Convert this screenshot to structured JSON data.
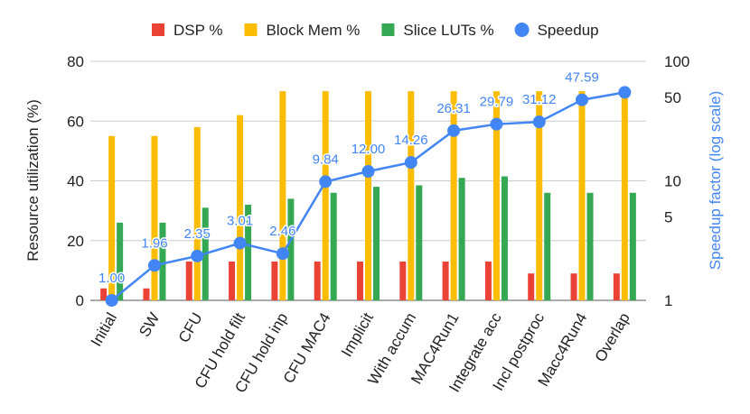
{
  "chart_data": {
    "type": "bar",
    "categories": [
      "Initial",
      "SW",
      "CFU",
      "CFU hold filt",
      "CFU hold inp",
      "CFU MAC4",
      "Implicit",
      "With accum",
      "MAC4Run1",
      "Integrate acc",
      "Incl postproc",
      "Macc4Run4",
      "Overlap"
    ],
    "series": [
      {
        "name": "DSP %",
        "color": "#ea4335",
        "axis": "left",
        "type": "bar",
        "values": [
          4,
          4,
          13,
          13,
          13,
          13,
          13,
          13,
          13,
          13,
          9,
          9,
          9
        ]
      },
      {
        "name": "Block Mem %",
        "color": "#fbbc04",
        "axis": "left",
        "type": "bar",
        "values": [
          55,
          55,
          58,
          62,
          70,
          70,
          70,
          70,
          70,
          70,
          70,
          70,
          70
        ]
      },
      {
        "name": "Slice LUTs %",
        "color": "#34a853",
        "axis": "left",
        "type": "bar",
        "values": [
          26,
          26,
          31,
          32,
          34,
          36,
          38,
          38.5,
          41,
          41.5,
          36,
          36,
          36
        ]
      },
      {
        "name": "Speedup",
        "color": "#4285f4",
        "axis": "right",
        "type": "line",
        "values": [
          1.0,
          1.96,
          2.35,
          3.01,
          2.46,
          9.84,
          12.0,
          14.26,
          26.31,
          29.79,
          31.12,
          47.59,
          55
        ],
        "labels": [
          "1.00",
          "1.96",
          "2.35",
          "3.01",
          "2.46",
          "9.84",
          "12.00",
          "14.26",
          "26.31",
          "29.79",
          "31.12",
          "47.59",
          ""
        ]
      }
    ],
    "ylabel": "Resource utilization (%)",
    "ylim": [
      0,
      80
    ],
    "yticks": [
      "0",
      "20",
      "40",
      "60",
      "80"
    ],
    "y2label": "Speedup factor (log scale)",
    "y2scale": "log",
    "y2lim": [
      1,
      100
    ],
    "y2ticks": [
      "1",
      "5",
      "10",
      "50",
      "100"
    ],
    "grid": true,
    "legend_position": "top-center"
  }
}
